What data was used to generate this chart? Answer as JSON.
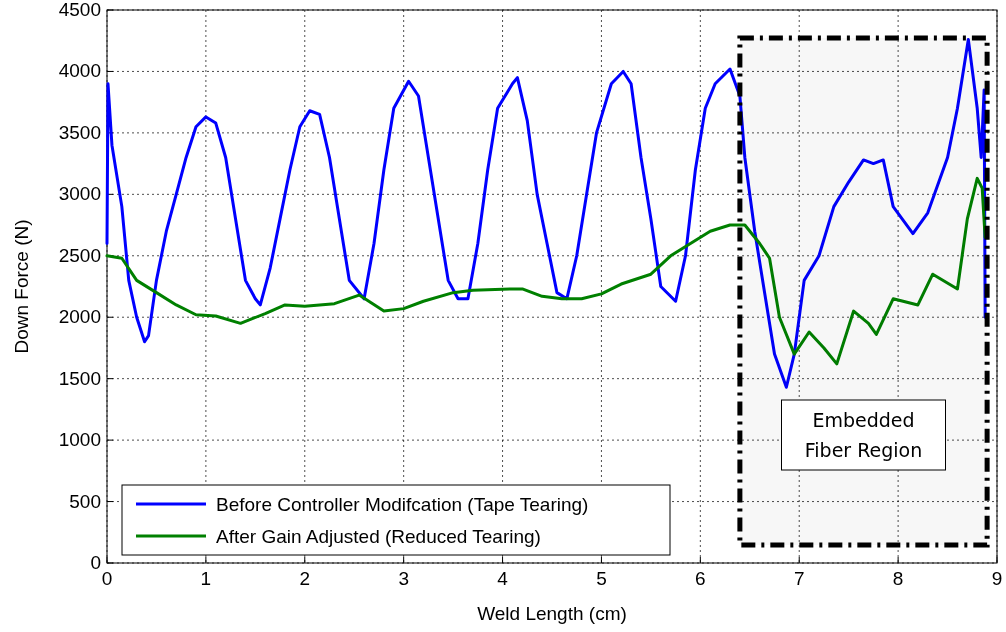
{
  "chart_data": {
    "type": "line",
    "xlabel": "Weld Length (cm)",
    "ylabel": "Down Force (N)",
    "xlim": [
      0,
      9
    ],
    "xticks": [
      0,
      1,
      2,
      3,
      4,
      5,
      6,
      7,
      8,
      9
    ],
    "ylim": [
      0,
      4500
    ],
    "yticks": [
      0,
      500,
      1000,
      1500,
      2000,
      2500,
      3000,
      3500,
      4000,
      4500
    ],
    "grid": true,
    "legend": "bottom left",
    "line_style": "solid",
    "bands": [
      {
        "axis": "x",
        "from": 6.4,
        "to": 8.9,
        "label": "Embedded Fiber Region",
        "color": "#000000"
      }
    ],
    "series": [
      {
        "name": "Before Controller Modifcation (Tape Tearing)",
        "color": "#0000ff",
        "x": [
          0,
          0.01,
          0.05,
          0.15,
          0.22,
          0.3,
          0.38,
          0.42,
          0.5,
          0.6,
          0.7,
          0.8,
          0.9,
          1.0,
          1.1,
          1.2,
          1.3,
          1.4,
          1.5,
          1.55,
          1.65,
          1.75,
          1.85,
          1.95,
          2.05,
          2.15,
          2.25,
          2.35,
          2.45,
          2.6,
          2.7,
          2.8,
          2.9,
          3.05,
          3.15,
          3.25,
          3.35,
          3.45,
          3.55,
          3.65,
          3.75,
          3.85,
          3.95,
          4.1,
          4.15,
          4.25,
          4.35,
          4.45,
          4.55,
          4.65,
          4.75,
          4.85,
          4.95,
          5.1,
          5.22,
          5.3,
          5.4,
          5.5,
          5.6,
          5.75,
          5.85,
          5.95,
          6.05,
          6.15,
          6.3,
          6.4,
          6.45,
          6.55,
          6.65,
          6.75,
          6.87,
          6.95,
          7.05,
          7.2,
          7.35,
          7.5,
          7.65,
          7.75,
          7.85,
          7.95,
          8.15,
          8.3,
          8.5,
          8.6,
          8.71,
          8.8,
          8.84,
          8.87,
          8.88
        ],
        "values": [
          2600,
          3900,
          3400,
          2900,
          2300,
          2000,
          1800,
          1850,
          2300,
          2700,
          3000,
          3300,
          3550,
          3630,
          3580,
          3300,
          2800,
          2300,
          2150,
          2100,
          2400,
          2800,
          3200,
          3550,
          3680,
          3650,
          3300,
          2800,
          2300,
          2150,
          2600,
          3200,
          3700,
          3920,
          3800,
          3300,
          2800,
          2300,
          2150,
          2150,
          2600,
          3200,
          3700,
          3900,
          3950,
          3600,
          3000,
          2600,
          2200,
          2150,
          2500,
          3000,
          3500,
          3900,
          4000,
          3900,
          3300,
          2800,
          2250,
          2130,
          2500,
          3200,
          3700,
          3900,
          4020,
          3800,
          3300,
          2700,
          2200,
          1700,
          1430,
          1700,
          2300,
          2500,
          2900,
          3100,
          3280,
          3250,
          3280,
          2900,
          2680,
          2850,
          3300,
          3700,
          4260,
          3700,
          3300,
          3850,
          2000
        ]
      },
      {
        "name": "After Gain Adjusted (Reduced Tearing)",
        "color": "#008000",
        "x": [
          0,
          0.15,
          0.3,
          0.5,
          0.7,
          0.9,
          1.1,
          1.35,
          1.6,
          1.8,
          2.0,
          2.3,
          2.55,
          2.8,
          3.0,
          3.2,
          3.5,
          3.7,
          4.1,
          4.2,
          4.4,
          4.6,
          4.8,
          5.0,
          5.2,
          5.5,
          5.7,
          5.9,
          6.1,
          6.3,
          6.45,
          6.6,
          6.7,
          6.8,
          6.95,
          7.1,
          7.25,
          7.38,
          7.55,
          7.7,
          7.78,
          7.95,
          8.2,
          8.35,
          8.6,
          8.7,
          8.8,
          8.85,
          8.88
        ],
        "values": [
          2500,
          2480,
          2300,
          2200,
          2100,
          2020,
          2010,
          1950,
          2030,
          2100,
          2090,
          2110,
          2180,
          2050,
          2070,
          2130,
          2200,
          2220,
          2230,
          2230,
          2170,
          2150,
          2150,
          2190,
          2270,
          2350,
          2500,
          2600,
          2700,
          2750,
          2750,
          2600,
          2480,
          2000,
          1700,
          1880,
          1750,
          1620,
          2050,
          1950,
          1860,
          2150,
          2100,
          2350,
          2230,
          2800,
          3130,
          3050,
          2650
        ]
      }
    ]
  }
}
